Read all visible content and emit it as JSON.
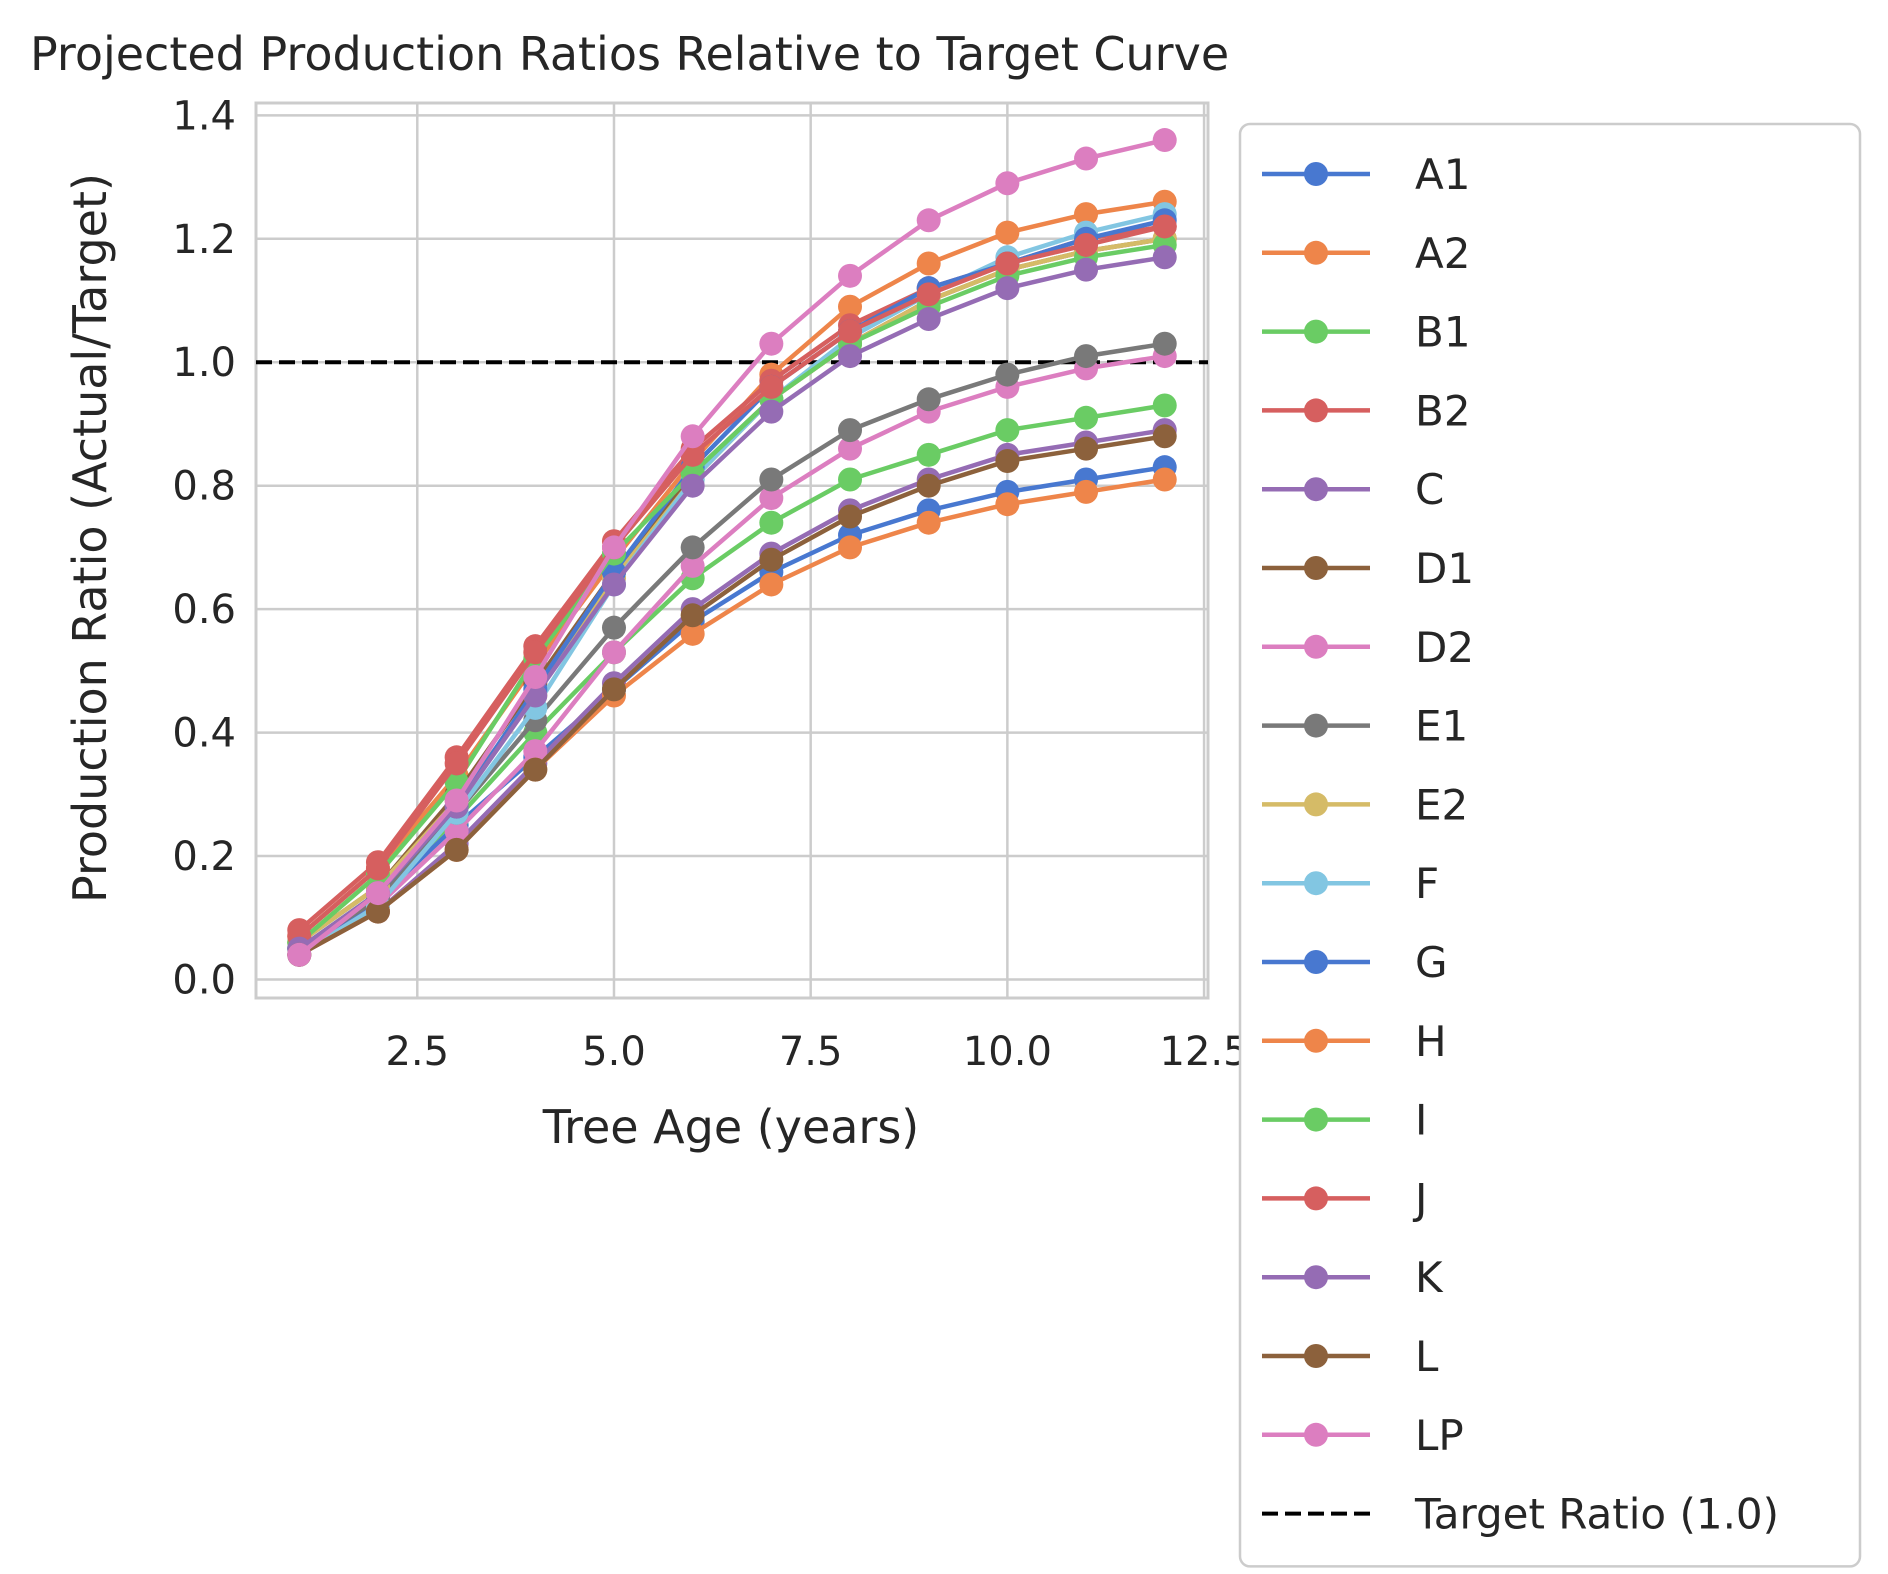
{
  "chart_data": {
    "type": "line",
    "title": "Projected Production Ratios Relative to Target Curve",
    "xlabel": "Tree Age (years)",
    "ylabel": "Production Ratio (Actual/Target)",
    "xlim": [
      0.45,
      12.55
    ],
    "ylim": [
      -0.03,
      1.42
    ],
    "xticks": [
      2.5,
      5.0,
      7.5,
      10.0,
      12.5
    ],
    "xtick_labels": [
      "2.5",
      "5.0",
      "7.5",
      "10.0",
      "12.5"
    ],
    "yticks": [
      0.0,
      0.2,
      0.4,
      0.6,
      0.8,
      1.0,
      1.2,
      1.4
    ],
    "ytick_labels": [
      "0.0",
      "0.2",
      "0.4",
      "0.6",
      "0.8",
      "1.0",
      "1.2",
      "1.4"
    ],
    "grid": true,
    "legend_position": "outside-right",
    "x": [
      1,
      2,
      3,
      4,
      5,
      6,
      7,
      8,
      9,
      10,
      11,
      12
    ],
    "series": [
      {
        "name": "A1",
        "color": "#4878d0",
        "values": [
          0.04,
          0.13,
          0.25,
          0.36,
          0.47,
          0.58,
          0.66,
          0.72,
          0.76,
          0.79,
          0.81,
          0.83
        ]
      },
      {
        "name": "A2",
        "color": "#ee854a",
        "values": [
          0.07,
          0.18,
          0.33,
          0.51,
          0.68,
          0.84,
          0.98,
          1.09,
          1.16,
          1.21,
          1.24,
          1.26
        ]
      },
      {
        "name": "B1",
        "color": "#6acc64",
        "values": [
          0.05,
          0.14,
          0.26,
          0.4,
          0.53,
          0.65,
          0.74,
          0.81,
          0.85,
          0.89,
          0.91,
          0.93
        ]
      },
      {
        "name": "B2",
        "color": "#d65f5f",
        "values": [
          0.08,
          0.19,
          0.36,
          0.54,
          0.71,
          0.86,
          0.97,
          1.06,
          1.12,
          1.16,
          1.2,
          1.22
        ]
      },
      {
        "name": "C",
        "color": "#956cb4",
        "values": [
          0.04,
          0.11,
          0.22,
          0.35,
          0.48,
          0.6,
          0.69,
          0.76,
          0.81,
          0.85,
          0.87,
          0.89
        ]
      },
      {
        "name": "D1",
        "color": "#8c613c",
        "values": [
          0.06,
          0.15,
          0.3,
          0.48,
          0.66,
          0.82,
          0.94,
          1.03,
          1.1,
          1.15,
          1.18,
          1.2
        ]
      },
      {
        "name": "D2",
        "color": "#dc7ec0",
        "values": [
          0.04,
          0.12,
          0.24,
          0.37,
          0.53,
          0.67,
          0.78,
          0.86,
          0.92,
          0.96,
          0.99,
          1.01
        ]
      },
      {
        "name": "E1",
        "color": "#797979",
        "values": [
          0.05,
          0.13,
          0.27,
          0.42,
          0.57,
          0.7,
          0.81,
          0.89,
          0.94,
          0.98,
          1.01,
          1.03
        ]
      },
      {
        "name": "E2",
        "color": "#d5bb67",
        "values": [
          0.06,
          0.15,
          0.29,
          0.46,
          0.65,
          0.81,
          0.94,
          1.03,
          1.1,
          1.15,
          1.18,
          1.2
        ]
      },
      {
        "name": "F",
        "color": "#82c6e2",
        "values": [
          0.04,
          0.12,
          0.27,
          0.44,
          0.64,
          0.81,
          0.94,
          1.04,
          1.11,
          1.17,
          1.21,
          1.24
        ]
      },
      {
        "name": "G",
        "color": "#4878d0",
        "values": [
          0.05,
          0.14,
          0.28,
          0.47,
          0.66,
          0.83,
          0.96,
          1.05,
          1.12,
          1.16,
          1.2,
          1.23
        ]
      },
      {
        "name": "H",
        "color": "#ee854a",
        "values": [
          0.04,
          0.11,
          0.21,
          0.34,
          0.46,
          0.56,
          0.64,
          0.7,
          0.74,
          0.77,
          0.79,
          0.81
        ]
      },
      {
        "name": "I",
        "color": "#6acc64",
        "values": [
          0.06,
          0.17,
          0.32,
          0.52,
          0.69,
          0.82,
          0.94,
          1.03,
          1.09,
          1.14,
          1.17,
          1.19
        ]
      },
      {
        "name": "J",
        "color": "#d65f5f",
        "values": [
          0.07,
          0.18,
          0.35,
          0.53,
          0.7,
          0.85,
          0.96,
          1.05,
          1.11,
          1.16,
          1.19,
          1.22
        ]
      },
      {
        "name": "K",
        "color": "#956cb4",
        "values": [
          0.05,
          0.14,
          0.28,
          0.46,
          0.64,
          0.8,
          0.92,
          1.01,
          1.07,
          1.12,
          1.15,
          1.17
        ]
      },
      {
        "name": "L",
        "color": "#8c613c",
        "values": [
          0.04,
          0.11,
          0.21,
          0.34,
          0.47,
          0.59,
          0.68,
          0.75,
          0.8,
          0.84,
          0.86,
          0.88
        ]
      },
      {
        "name": "LP",
        "color": "#dc7ec0",
        "values": [
          0.04,
          0.14,
          0.29,
          0.49,
          0.7,
          0.88,
          1.03,
          1.14,
          1.23,
          1.29,
          1.33,
          1.36
        ]
      }
    ],
    "reference_line": {
      "name": "Target Ratio (1.0)",
      "y": 1.0,
      "color": "#000000",
      "style": "dashed"
    }
  }
}
